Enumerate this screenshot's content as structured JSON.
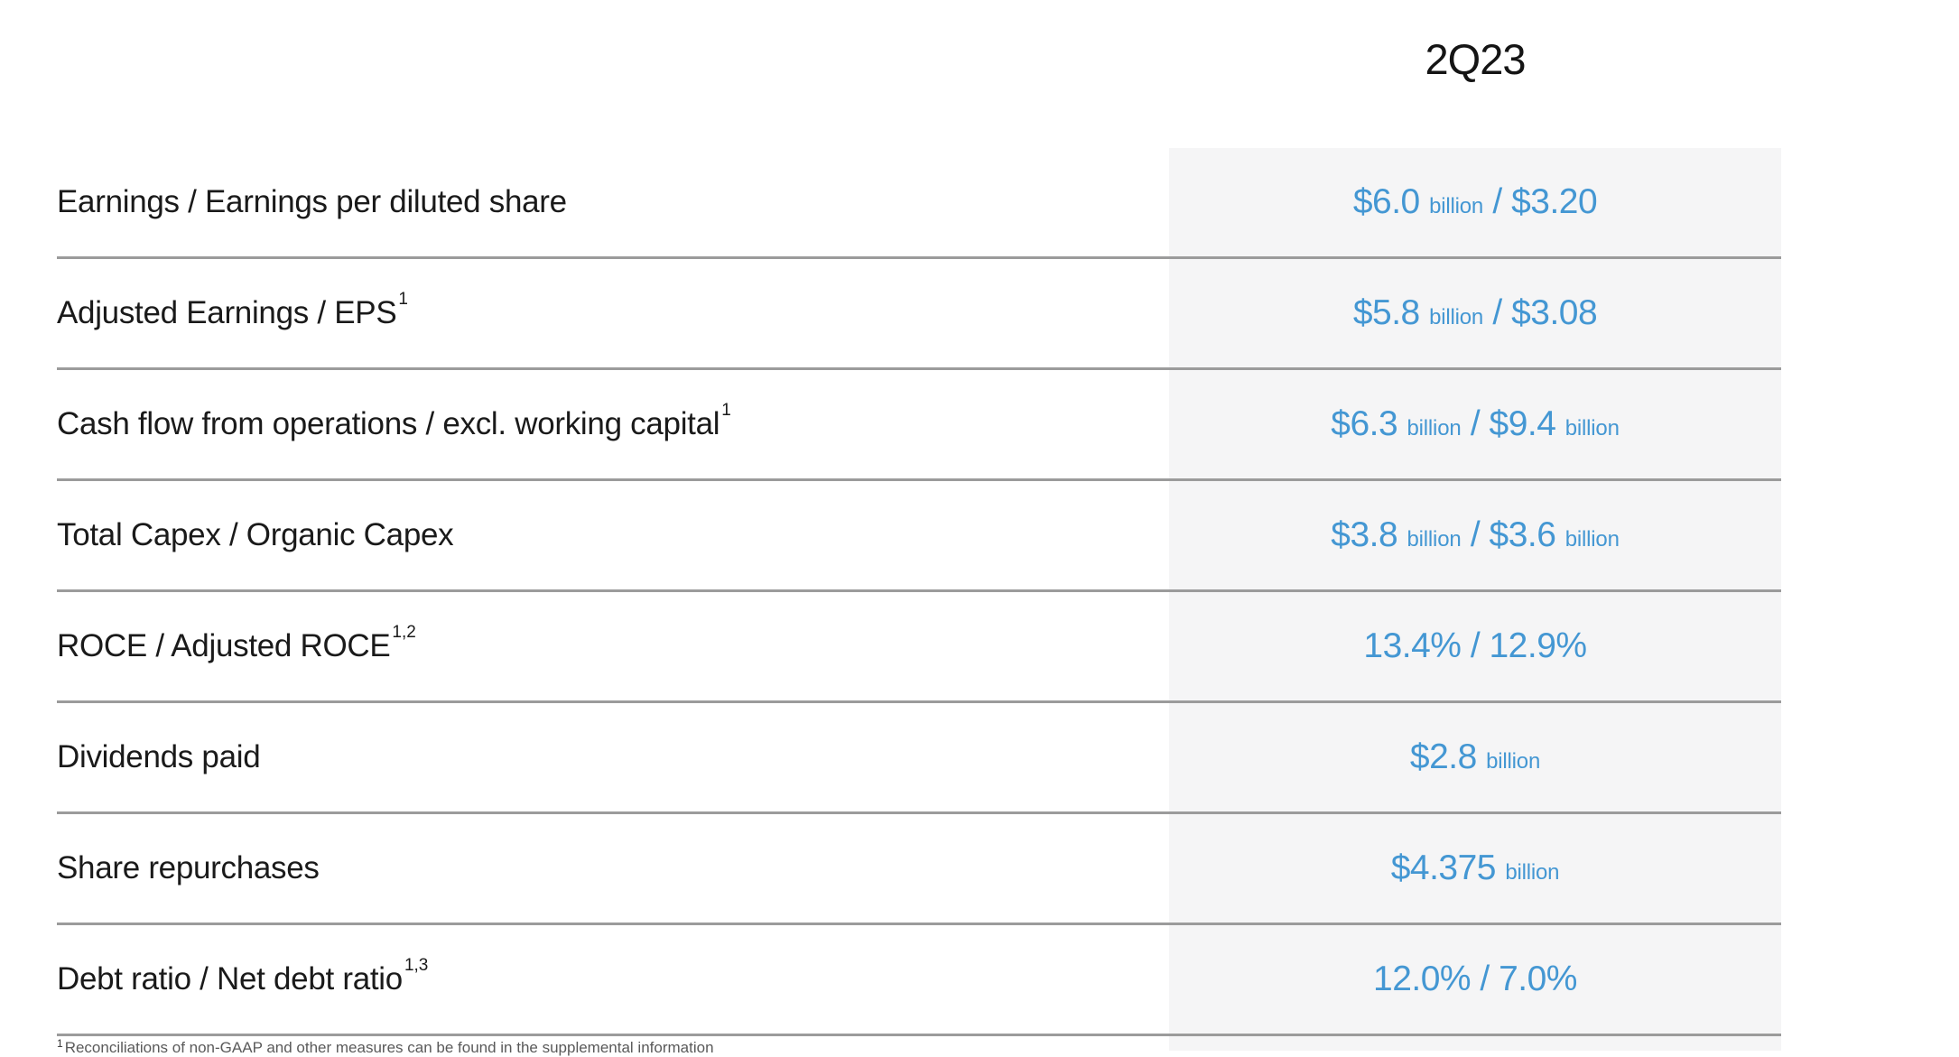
{
  "colors": {
    "accent_blue": "#4497d3",
    "label_text": "#1a1a1a",
    "divider_gray": "#9b9b9b",
    "value_column_bg": "#f5f5f6"
  },
  "header": {
    "period": "2Q23"
  },
  "table": {
    "rows": [
      {
        "label": "Earnings / Earnings per diluted share",
        "sup": "",
        "value_parts": [
          {
            "text": "$6.0 ",
            "style": "num"
          },
          {
            "text": "billion",
            "style": "unit"
          },
          {
            "text": " / $3.20",
            "style": "num"
          }
        ]
      },
      {
        "label": "Adjusted Earnings / EPS",
        "sup": "1",
        "value_parts": [
          {
            "text": "$5.8 ",
            "style": "num"
          },
          {
            "text": "billion",
            "style": "unit"
          },
          {
            "text": " / $3.08",
            "style": "num"
          }
        ]
      },
      {
        "label": "Cash flow from operations / excl. working capital",
        "sup": "1",
        "value_parts": [
          {
            "text": "$6.3 ",
            "style": "num"
          },
          {
            "text": "billion",
            "style": "unit"
          },
          {
            "text": " / $9.4 ",
            "style": "num"
          },
          {
            "text": "billion",
            "style": "unit"
          }
        ]
      },
      {
        "label": "Total Capex / Organic Capex",
        "sup": "",
        "value_parts": [
          {
            "text": "$3.8 ",
            "style": "num"
          },
          {
            "text": "billion",
            "style": "unit"
          },
          {
            "text": " / $3.6 ",
            "style": "num"
          },
          {
            "text": "billion",
            "style": "unit"
          }
        ]
      },
      {
        "label": "ROCE / Adjusted ROCE",
        "sup": "1,2",
        "value_parts": [
          {
            "text": "13.4% / 12.9%",
            "style": "num"
          }
        ]
      },
      {
        "label": "Dividends paid",
        "sup": "",
        "value_parts": [
          {
            "text": "$2.8 ",
            "style": "num"
          },
          {
            "text": "billion",
            "style": "unit"
          }
        ]
      },
      {
        "label": "Share repurchases",
        "sup": "",
        "value_parts": [
          {
            "text": "$4.375 ",
            "style": "num"
          },
          {
            "text": "billion",
            "style": "unit"
          }
        ]
      },
      {
        "label": "Debt ratio / Net debt ratio",
        "sup": "1,3",
        "value_parts": [
          {
            "text": "12.0% / 7.0%",
            "style": "num"
          }
        ]
      }
    ]
  },
  "footnote": {
    "marker": "1",
    "text": "Reconciliations of non-GAAP and other measures can be found in the supplemental information"
  }
}
